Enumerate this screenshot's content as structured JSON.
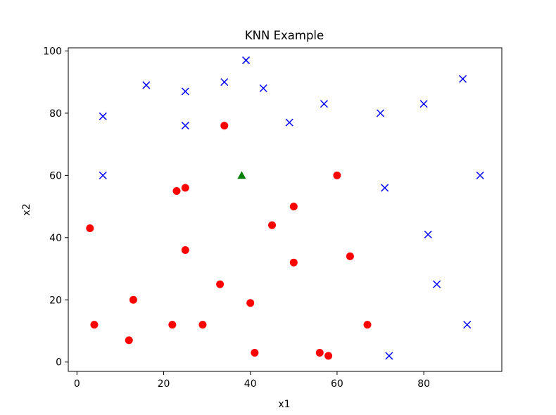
{
  "chart_data": {
    "type": "scatter",
    "title": "KNN Example",
    "xlabel": "x1",
    "ylabel": "x2",
    "xlim": [
      -2,
      98
    ],
    "ylim": [
      -3,
      101
    ],
    "xticks": [
      0,
      20,
      40,
      60,
      80
    ],
    "yticks": [
      0,
      20,
      40,
      60,
      80,
      100
    ],
    "grid": false,
    "series": [
      {
        "marker": "circle",
        "color": "#ff0000",
        "points": [
          [
            3,
            43
          ],
          [
            4,
            12
          ],
          [
            12,
            7
          ],
          [
            13,
            20
          ],
          [
            22,
            12
          ],
          [
            23,
            55
          ],
          [
            25,
            56
          ],
          [
            25,
            36
          ],
          [
            29,
            12
          ],
          [
            33,
            25
          ],
          [
            34,
            76
          ],
          [
            40,
            19
          ],
          [
            41,
            3
          ],
          [
            45,
            44
          ],
          [
            50,
            50
          ],
          [
            50,
            32
          ],
          [
            56,
            3
          ],
          [
            58,
            2
          ],
          [
            60,
            60
          ],
          [
            63,
            34
          ],
          [
            67,
            12
          ]
        ]
      },
      {
        "marker": "x",
        "color": "#0000ff",
        "points": [
          [
            6,
            79
          ],
          [
            6,
            60
          ],
          [
            16,
            89
          ],
          [
            25,
            87
          ],
          [
            25,
            76
          ],
          [
            34,
            90
          ],
          [
            39,
            97
          ],
          [
            43,
            88
          ],
          [
            49,
            77
          ],
          [
            57,
            83
          ],
          [
            70,
            80
          ],
          [
            71,
            56
          ],
          [
            72,
            2
          ],
          [
            80,
            83
          ],
          [
            81,
            41
          ],
          [
            83,
            25
          ],
          [
            89,
            91
          ],
          [
            90,
            12
          ],
          [
            93,
            60
          ]
        ]
      },
      {
        "marker": "triangle",
        "color": "#008000",
        "points": [
          [
            38,
            60
          ]
        ]
      }
    ]
  }
}
